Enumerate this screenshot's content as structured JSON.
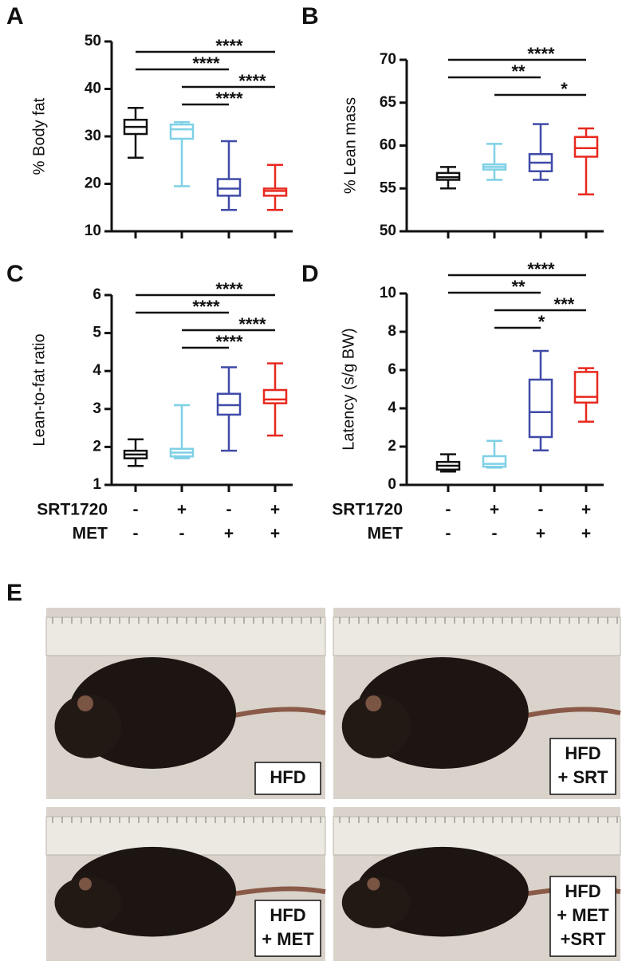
{
  "chart_data": [
    {
      "type": "box",
      "panel": "A",
      "y_label": "% Body fat",
      "categories": [
        null,
        null,
        null,
        null
      ],
      "ylim": [
        10,
        50
      ],
      "yticks": [
        10,
        20,
        30,
        40,
        50
      ],
      "boxes": [
        {
          "color": "#111111",
          "whisker_low": 25.5,
          "q1": 30.5,
          "median": 32,
          "q3": 33.5,
          "whisker_high": 36
        },
        {
          "color": "#7fd0e6",
          "whisker_low": 19.5,
          "q1": 29.5,
          "median": 31.5,
          "q3": 32.5,
          "whisker_high": 33
        },
        {
          "color": "#3f4aa8",
          "whisker_low": 14.5,
          "q1": 17.5,
          "median": 19,
          "q3": 21,
          "whisker_high": 29
        },
        {
          "color": "#e8281e",
          "whisker_low": 14.5,
          "q1": 17.5,
          "median": 18.5,
          "q3": 19,
          "whisker_high": 24
        }
      ],
      "annotations": [
        {
          "text": "****",
          "from": 0,
          "to": 3
        },
        {
          "text": "****",
          "from": 0,
          "to": 2
        },
        {
          "text": "****",
          "from": 1,
          "to": 3
        },
        {
          "text": "****",
          "from": 1,
          "to": 2
        }
      ]
    },
    {
      "type": "box",
      "panel": "B",
      "y_label": "% Lean mass",
      "categories": [
        null,
        null,
        null,
        null
      ],
      "ylim": [
        50,
        70
      ],
      "yticks": [
        50,
        55,
        60,
        65,
        70
      ],
      "boxes": [
        {
          "color": "#111111",
          "whisker_low": 55,
          "q1": 56,
          "median": 56.3,
          "q3": 56.8,
          "whisker_high": 57.5
        },
        {
          "color": "#7fd0e6",
          "whisker_low": 56,
          "q1": 57.2,
          "median": 57.5,
          "q3": 57.8,
          "whisker_high": 60.2
        },
        {
          "color": "#3f4aa8",
          "whisker_low": 56,
          "q1": 57,
          "median": 58,
          "q3": 59,
          "whisker_high": 62.5
        },
        {
          "color": "#e8281e",
          "whisker_low": 54.3,
          "q1": 58.7,
          "median": 59.7,
          "q3": 61,
          "whisker_high": 62
        }
      ],
      "annotations": [
        {
          "text": "****",
          "from": 0,
          "to": 3
        },
        {
          "text": "**",
          "from": 0,
          "to": 2
        },
        {
          "text": "*",
          "from": 1,
          "to": 3
        }
      ]
    },
    {
      "type": "box",
      "panel": "C",
      "y_label": "Lean-to-fat ratio",
      "categories": [
        null,
        null,
        null,
        null
      ],
      "ylim": [
        1,
        6
      ],
      "yticks": [
        1,
        2,
        3,
        4,
        5,
        6
      ],
      "boxes": [
        {
          "color": "#111111",
          "whisker_low": 1.5,
          "q1": 1.7,
          "median": 1.8,
          "q3": 1.9,
          "whisker_high": 2.2
        },
        {
          "color": "#7fd0e6",
          "whisker_low": 1.7,
          "q1": 1.75,
          "median": 1.85,
          "q3": 1.95,
          "whisker_high": 3.1
        },
        {
          "color": "#3f4aa8",
          "whisker_low": 1.9,
          "q1": 2.85,
          "median": 3.1,
          "q3": 3.4,
          "whisker_high": 4.1
        },
        {
          "color": "#e8281e",
          "whisker_low": 2.3,
          "q1": 3.15,
          "median": 3.25,
          "q3": 3.5,
          "whisker_high": 4.2
        }
      ],
      "annotations": [
        {
          "text": "****",
          "from": 0,
          "to": 3
        },
        {
          "text": "****",
          "from": 0,
          "to": 2
        },
        {
          "text": "****",
          "from": 1,
          "to": 3
        },
        {
          "text": "****",
          "from": 1,
          "to": 2
        }
      ],
      "treatments": [
        {
          "name": "SRT1720",
          "values": [
            "-",
            "+",
            "-",
            "+"
          ]
        },
        {
          "name": "MET",
          "values": [
            "-",
            "-",
            "+",
            "+"
          ]
        }
      ]
    },
    {
      "type": "box",
      "panel": "D",
      "y_label": "Latency (s/g BW)",
      "categories": [
        null,
        null,
        null,
        null
      ],
      "ylim": [
        0,
        10
      ],
      "yticks": [
        0,
        2,
        4,
        6,
        8,
        10
      ],
      "boxes": [
        {
          "color": "#111111",
          "whisker_low": 0.7,
          "q1": 0.8,
          "median": 1.0,
          "q3": 1.2,
          "whisker_high": 1.6
        },
        {
          "color": "#7fd0e6",
          "whisker_low": 0.9,
          "q1": 0.95,
          "median": 1.1,
          "q3": 1.5,
          "whisker_high": 2.3
        },
        {
          "color": "#3f4aa8",
          "whisker_low": 1.8,
          "q1": 2.5,
          "median": 3.8,
          "q3": 5.5,
          "whisker_high": 7.0
        },
        {
          "color": "#e8281e",
          "whisker_low": 3.3,
          "q1": 4.3,
          "median": 4.6,
          "q3": 5.9,
          "whisker_high": 6.1
        }
      ],
      "annotations": [
        {
          "text": "****",
          "from": 0,
          "to": 3
        },
        {
          "text": "**",
          "from": 0,
          "to": 2
        },
        {
          "text": "***",
          "from": 1,
          "to": 3
        },
        {
          "text": "*",
          "from": 1,
          "to": 2
        }
      ],
      "treatments": [
        {
          "name": "SRT1720",
          "values": [
            "-",
            "+",
            "-",
            "+"
          ]
        },
        {
          "name": "MET",
          "values": [
            "-",
            "-",
            "+",
            "+"
          ]
        }
      ]
    }
  ],
  "panel_e": {
    "label": "E",
    "photos": [
      {
        "lines": [
          "HFD"
        ]
      },
      {
        "lines": [
          "HFD",
          "+ SRT"
        ]
      },
      {
        "lines": [
          "HFD",
          "+ MET"
        ]
      },
      {
        "lines": [
          "HFD",
          "+ MET",
          "+SRT"
        ]
      }
    ]
  }
}
